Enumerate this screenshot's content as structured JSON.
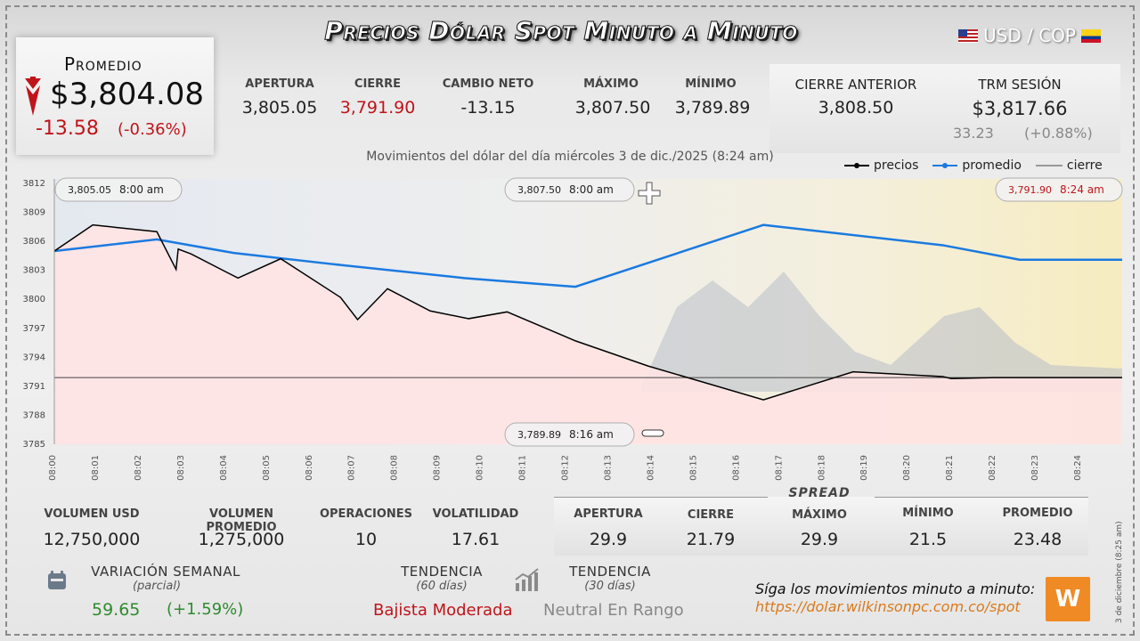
{
  "header": {
    "title": "Precios Dólar Spot Minuto a Minuto",
    "pair": "USD / COP"
  },
  "promedio": {
    "label": "Promedio",
    "value": "$3,804.08",
    "change": "-13.58",
    "change_pct": "(-0.36%)"
  },
  "stats": [
    {
      "label": "APERTURA",
      "value": "3,805.05"
    },
    {
      "label": "CIERRE",
      "value": "3,791.90"
    },
    {
      "label": "CAMBIO NETO",
      "value": "-13.15"
    },
    {
      "label": "MÁXIMO",
      "value": "3,807.50"
    },
    {
      "label": "MÍNIMO",
      "value": "3,789.89"
    }
  ],
  "cierre_anterior": {
    "label": "CIERRE ANTERIOR",
    "value": "3,808.50"
  },
  "trm": {
    "label": "TRM SESIÓN",
    "value": "$3,817.66",
    "change": "33.23",
    "change_pct": "(+0.88%)"
  },
  "chart_subtitle": "Movimientos del dólar del día miércoles 3 de dic./2025 (8:24 am)",
  "legend": {
    "precios": "precios",
    "promedio": "promedio",
    "cierre": "cierre"
  },
  "annotations": {
    "open": {
      "value": "3,805.05",
      "time": "8:00 am"
    },
    "max": {
      "value": "3,807.50",
      "time": "8:00 am"
    },
    "close": {
      "value": "3,791.90",
      "time": "8:24 am"
    },
    "min": {
      "value": "3,789.89",
      "time": "8:16 am"
    }
  },
  "colors": {
    "precios": "#000000",
    "promedio": "#1a7ae0",
    "cierre": "#444444",
    "fill": "#ffe3e3",
    "negative": "#c0141b",
    "positive": "#2e8b2e",
    "brand": "#f08a24"
  },
  "chart_data": {
    "type": "line",
    "xlabel": "",
    "ylabel": "",
    "ylim": [
      3785,
      3812
    ],
    "yticks": [
      3812,
      3809,
      3806,
      3803,
      3800,
      3797,
      3794,
      3791,
      3788,
      3785
    ],
    "xticks": [
      "08:00",
      "08:01",
      "08:02",
      "08:03",
      "08:04",
      "08:05",
      "08:06",
      "08:07",
      "08:08",
      "08:09",
      "08:10",
      "08:11",
      "08:12",
      "08:13",
      "08:14",
      "08:15",
      "08:16",
      "08:17",
      "08:18",
      "08:19",
      "08:20",
      "08:21",
      "08:22",
      "08:23",
      "08:24"
    ],
    "series": [
      {
        "name": "precios",
        "x": [
          0,
          0.9,
          2.4,
          2.85,
          2.9,
          3.2,
          4.3,
          5.3,
          6.7,
          7.1,
          7.8,
          8.8,
          9.7,
          10.6,
          12.2,
          13.9,
          16.6,
          18.7,
          20.8,
          21,
          22,
          25
        ],
        "y": [
          3805,
          3807.7,
          3807,
          3803.1,
          3805.2,
          3804.7,
          3802.2,
          3804.2,
          3800.2,
          3797.9,
          3801.1,
          3798.8,
          3798,
          3798.7,
          3795.7,
          3793.1,
          3789.6,
          3792.5,
          3792,
          3791.8,
          3791.9,
          3791.9
        ]
      },
      {
        "name": "promedio",
        "x": [
          0,
          2.4,
          4.2,
          6.4,
          9.6,
          12.2,
          16.6,
          20.8,
          22.6,
          25
        ],
        "y": [
          3805,
          3806.2,
          3804.8,
          3803.7,
          3802.2,
          3801.3,
          3807.7,
          3805.6,
          3804.1,
          3804.1
        ]
      },
      {
        "name": "cierre",
        "x": [
          0,
          25
        ],
        "y": [
          3791.9,
          3791.9
        ]
      }
    ]
  },
  "bottom": [
    {
      "label": "VOLUMEN USD",
      "value": "12,750,000"
    },
    {
      "label": "VOLUMEN PROMEDIO",
      "value": "1,275,000"
    },
    {
      "label": "OPERACIONES",
      "value": "10"
    },
    {
      "label": "VOLATILIDAD",
      "value": "17.61"
    }
  ],
  "spread": {
    "title": "SPREAD",
    "items": [
      {
        "label": "APERTURA",
        "value": "29.9"
      },
      {
        "label": "CIERRE",
        "value": "21.79"
      },
      {
        "label": "MÁXIMO",
        "value": "29.9"
      },
      {
        "label": "MÍNIMO",
        "value": "21.5"
      },
      {
        "label": "PROMEDIO",
        "value": "23.48"
      }
    ]
  },
  "variacion": {
    "label": "VARIACIÓN SEMANAL",
    "sub": "(parcial)",
    "value": "59.65",
    "pct": "(+1.59%)"
  },
  "tendencia60": {
    "label": "TENDENCIA",
    "sub": "(60 días)",
    "value": "Bajista Moderada"
  },
  "tendencia30": {
    "label": "TENDENCIA",
    "sub": "(30 días)",
    "value": "Neutral En Rango"
  },
  "footer": {
    "text": "Síga los movimientos minuto a minuto:",
    "link": "https://dolar.wilkinsonpc.com.co/spot",
    "logo": "W"
  },
  "stamp": "3 de diciembre (8:25 am)"
}
